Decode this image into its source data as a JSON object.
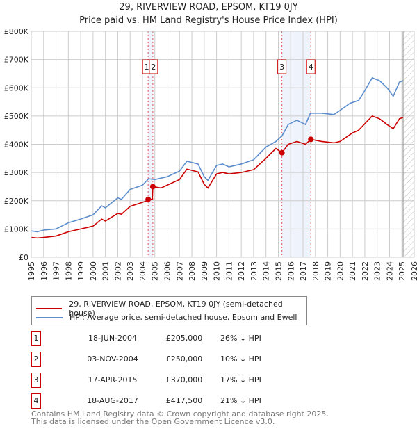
{
  "chart_data": {
    "type": "line",
    "title": "29, RIVERVIEW ROAD, EPSOM, KT19 0JY",
    "subtitle": "Price paid vs. HM Land Registry's House Price Index (HPI)",
    "xlim": [
      1995,
      2026
    ],
    "ylim": [
      0,
      800000
    ],
    "x_ticks": [
      "1995",
      "1996",
      "1997",
      "1998",
      "1999",
      "2000",
      "2001",
      "2002",
      "2003",
      "2004",
      "2005",
      "2006",
      "2007",
      "2008",
      "2009",
      "2010",
      "2011",
      "2012",
      "2013",
      "2014",
      "2015",
      "2016",
      "2017",
      "2018",
      "2019",
      "2020",
      "2021",
      "2022",
      "2023",
      "2024",
      "2025",
      "2026"
    ],
    "y_ticks": [
      {
        "v": 0,
        "label": "£0"
      },
      {
        "v": 100000,
        "label": "£100K"
      },
      {
        "v": 200000,
        "label": "£200K"
      },
      {
        "v": 300000,
        "label": "£300K"
      },
      {
        "v": 400000,
        "label": "£400K"
      },
      {
        "v": 500000,
        "label": "£500K"
      },
      {
        "v": 600000,
        "label": "£600K"
      },
      {
        "v": 700000,
        "label": "£700K"
      },
      {
        "v": 800000,
        "label": "£800K"
      }
    ],
    "grid": true,
    "forecast_from": 2025.1,
    "series": [
      {
        "name": "29, RIVERVIEW ROAD, EPSOM, KT19 0JY (semi-detached house)",
        "color": "#cc0000",
        "x": [
          1995,
          1995.5,
          1996,
          1997,
          1998,
          1999,
          2000,
          2000.7,
          2001,
          2002,
          2002.3,
          2003,
          2004.4,
          2004.46,
          2004.8,
          2004.84,
          2005.5,
          2006,
          2007,
          2007.6,
          2008.5,
          2009,
          2009.3,
          2010,
          2010.5,
          2011,
          2012,
          2013,
          2014,
          2014.8,
          2015.29,
          2015.8,
          2016.5,
          2017.2,
          2017.63,
          2018.5,
          2019.5,
          2020,
          2021,
          2021.5,
          2022.6,
          2023.2,
          2023.8,
          2024.3,
          2024.8,
          2025.1
        ],
        "y": [
          70000,
          68000,
          70000,
          75000,
          90000,
          100000,
          110000,
          135000,
          128000,
          155000,
          152000,
          180000,
          200000,
          205000,
          205000,
          250000,
          245000,
          255000,
          275000,
          312000,
          302000,
          258000,
          245000,
          295000,
          300000,
          295000,
          300000,
          310000,
          350000,
          385000,
          370000,
          400000,
          410000,
          400000,
          417500,
          410000,
          405000,
          410000,
          440000,
          450000,
          500000,
          490000,
          470000,
          455000,
          490000,
          495000
        ]
      },
      {
        "name": "HPI: Average price, semi-detached house, Epsom and Ewell",
        "color": "#5b8ccc",
        "x": [
          1995,
          1995.5,
          1996,
          1997,
          1998,
          1999,
          2000,
          2000.7,
          2001,
          2002,
          2002.3,
          2003,
          2004,
          2004.5,
          2005,
          2006,
          2007,
          2007.6,
          2008.5,
          2009,
          2009.3,
          2010,
          2010.5,
          2011,
          2012,
          2013,
          2014,
          2014.8,
          2015.3,
          2015.8,
          2016.5,
          2017.2,
          2017.6,
          2018.5,
          2019.5,
          2020,
          2020.8,
          2021.5,
          2022,
          2022.6,
          2023.2,
          2023.8,
          2024.3,
          2024.8,
          2025.1
        ],
        "y": [
          93000,
          90000,
          96000,
          100000,
          122000,
          135000,
          150000,
          182000,
          175000,
          210000,
          205000,
          240000,
          255000,
          278000,
          275000,
          285000,
          305000,
          340000,
          330000,
          285000,
          272000,
          325000,
          330000,
          320000,
          330000,
          345000,
          390000,
          410000,
          430000,
          470000,
          485000,
          470000,
          510000,
          510000,
          505000,
          520000,
          545000,
          555000,
          590000,
          635000,
          625000,
          600000,
          570000,
          620000,
          625000
        ]
      }
    ],
    "sales": [
      {
        "id": "1",
        "x": 2004.46,
        "y": 205000,
        "date": "18-JUN-2004",
        "price": "£205,000",
        "hpi": "26% ↓ HPI"
      },
      {
        "id": "2",
        "x": 2004.84,
        "y": 250000,
        "date": "03-NOV-2004",
        "price": "£250,000",
        "hpi": "10% ↓ HPI"
      },
      {
        "id": "3",
        "x": 2015.29,
        "y": 370000,
        "date": "17-APR-2015",
        "price": "£370,000",
        "hpi": "17% ↓ HPI"
      },
      {
        "id": "4",
        "x": 2017.63,
        "y": 417500,
        "date": "18-AUG-2017",
        "price": "£417,500",
        "hpi": "21% ↓ HPI"
      }
    ],
    "legend_placement": "below"
  },
  "footer": {
    "line1": "Contains HM Land Registry data © Crown copyright and database right 2025.",
    "line2": "This data is licensed under the Open Government Licence v3.0."
  }
}
